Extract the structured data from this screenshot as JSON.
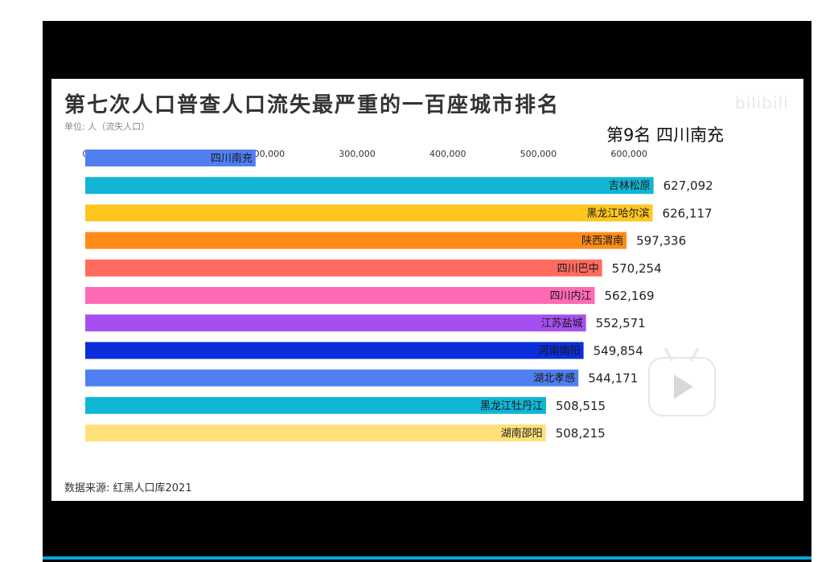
{
  "title": "第七次人口普查人口流失最严重的一百座城市排名",
  "unit": "单位: 人（流失人口）",
  "rank_label": "第9名 四川南充",
  "watermark": "bilibili",
  "source": "数据来源: 红黑人口库2021",
  "colors": {
    "frame": "#000000",
    "panel": "#ffffff",
    "progress": "#0aa3d8"
  },
  "icons": [
    "play-icon"
  ],
  "chart_data": {
    "type": "bar",
    "orientation": "horizontal",
    "title": "第七次人口普查人口流失最严重的一百座城市排名",
    "xlim": [
      0,
      670000
    ],
    "x_ticks": [
      "0",
      "200,000",
      "300,000",
      "400,000",
      "500,000",
      "600,000"
    ],
    "tick_values": [
      0,
      200000,
      300000,
      400000,
      500000,
      600000
    ],
    "grid": false,
    "categories": [
      "四川南充",
      "吉林松原",
      "黑龙江哈尔滨",
      "陕西渭南",
      "四川巴中",
      "四川内江",
      "江苏盐城",
      "河南南阳",
      "湖北孝感",
      "黑龙江牡丹江",
      "湖南邵阳"
    ],
    "values": [
      188000,
      627092,
      626117,
      597336,
      570254,
      562169,
      552571,
      549854,
      544171,
      508515,
      508215
    ],
    "value_labels": [
      "",
      "627,092",
      "626,117",
      "597,336",
      "570,254",
      "562,169",
      "552,571",
      "549,854",
      "544,171",
      "508,515",
      "508,215"
    ],
    "colors": [
      "#4f7ff0",
      "#10b6d4",
      "#ffc61e",
      "#ff8c1a",
      "#ff6b5e",
      "#ff6ab4",
      "#a64ff0",
      "#0a2ed8",
      "#4f7ff0",
      "#10b6d4",
      "#ffe07a"
    ]
  }
}
